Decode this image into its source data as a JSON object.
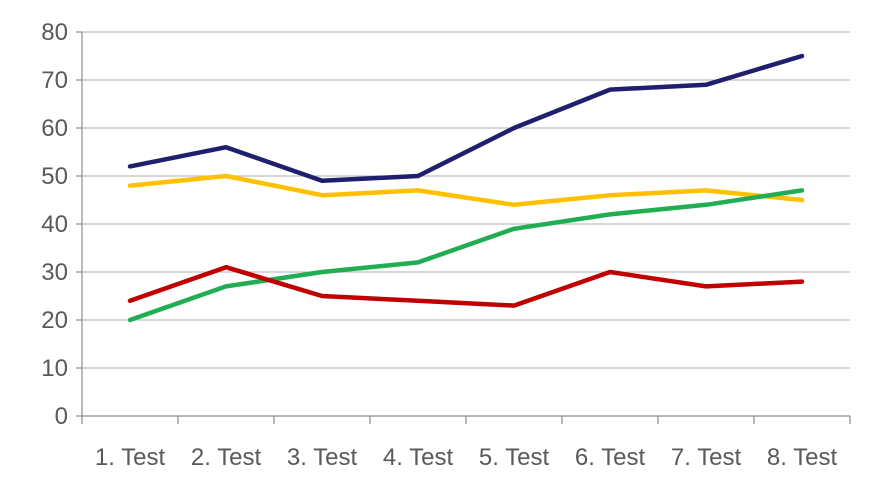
{
  "chart_data": {
    "type": "line",
    "title": "",
    "xlabel": "",
    "ylabel": "",
    "categories": [
      "1. Test",
      "2. Test",
      "3. Test",
      "4. Test",
      "5. Test",
      "6. Test",
      "7. Test",
      "8. Test"
    ],
    "ylim": [
      0,
      80
    ],
    "yticks": [
      0,
      10,
      20,
      30,
      40,
      50,
      60,
      70,
      80
    ],
    "grid": true,
    "legend": "none",
    "series": [
      {
        "color": "#1F1F6E",
        "values": [
          52,
          56,
          49,
          50,
          60,
          68,
          69,
          75
        ]
      },
      {
        "color": "#FFC000",
        "values": [
          48,
          50,
          46,
          47,
          44,
          46,
          47,
          45
        ]
      },
      {
        "color": "#21AD52",
        "values": [
          20,
          27,
          30,
          32,
          39,
          42,
          44,
          47
        ]
      },
      {
        "color": "#C00000",
        "values": [
          24,
          31,
          25,
          24,
          23,
          30,
          27,
          28
        ]
      }
    ]
  }
}
